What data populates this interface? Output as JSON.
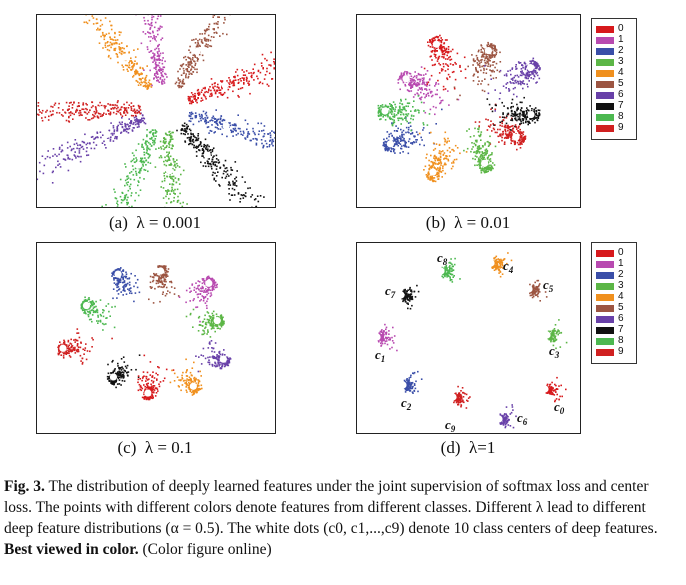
{
  "colors": [
    "#d7191c",
    "#b84ab0",
    "#3a4ea8",
    "#5cb646",
    "#f0901e",
    "#9c5542",
    "#6840a8",
    "#111111",
    "#4cb850",
    "#d02020"
  ],
  "legend_labels": [
    "0",
    "1",
    "2",
    "3",
    "4",
    "5",
    "6",
    "7",
    "8",
    "9"
  ],
  "panels": [
    {
      "caption_prefix": "(a)",
      "caption_math": "λ = 0.001"
    },
    {
      "caption_prefix": "(b)",
      "caption_math": "λ = 0.01"
    },
    {
      "caption_prefix": "(c)",
      "caption_math": "λ = 0.1"
    },
    {
      "caption_prefix": "(d)",
      "caption_math": "λ=1"
    }
  ],
  "center_labels": [
    {
      "name": "c",
      "sub": "0",
      "text": "c0"
    },
    {
      "name": "c",
      "sub": "1",
      "text": "c1"
    },
    {
      "name": "c",
      "sub": "2",
      "text": "c2"
    },
    {
      "name": "c",
      "sub": "3",
      "text": "c3"
    },
    {
      "name": "c",
      "sub": "4",
      "text": "c4"
    },
    {
      "name": "c",
      "sub": "5",
      "text": "c5"
    },
    {
      "name": "c",
      "sub": "6",
      "text": "c6"
    },
    {
      "name": "c",
      "sub": "7",
      "text": "c7"
    },
    {
      "name": "c",
      "sub": "8",
      "text": "c8"
    },
    {
      "name": "c",
      "sub": "9",
      "text": "c9"
    }
  ],
  "figure_caption": {
    "label": "Fig. 3.",
    "text1": " The distribution of deeply learned features under the joint supervision of softmax loss and center loss. The points with different colors denote features from different classes. Different λ lead to different deep feature distributions (α = 0.5). The white dots (c0, c1,...,c9) denote 10 class centers of deep features. ",
    "bold": "Best viewed in color.",
    "text2": " (Color figure online)"
  }
}
